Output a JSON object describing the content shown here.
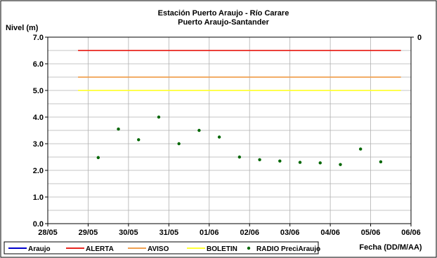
{
  "chart_data": {
    "type": "scatter",
    "title": "Estación Puerto Araujo - Río Carare",
    "subtitle": "Puerto Araujo-Santander",
    "ylabel": "Nivel (m)",
    "xlabel": "Fecha (DD/M/AA)",
    "ylim": [
      0,
      7
    ],
    "yticks": [
      "0.0",
      "1.0",
      "2.0",
      "3.0",
      "4.0",
      "5.0",
      "6.0",
      "7.0"
    ],
    "y2ticks": [
      "0"
    ],
    "xlim": [
      "2009-05-28",
      "2009-06-06"
    ],
    "xticks": [
      "28/05",
      "29/05",
      "30/05",
      "31/05",
      "01/06",
      "02/06",
      "03/06",
      "04/06",
      "05/06",
      "06/06"
    ],
    "grid": true,
    "legend_position": "bottom",
    "thresholds": [
      {
        "name": "ALERTA",
        "value": 6.5,
        "color": "#e8261f",
        "x_start": "2009-05-28 18:00",
        "x_end": "2009-06-05 18:00"
      },
      {
        "name": "AVISO",
        "value": 5.5,
        "color": "#f0a050",
        "x_start": "2009-05-28 18:00",
        "x_end": "2009-06-05 18:00"
      },
      {
        "name": "BOLETIN",
        "value": 5.0,
        "color": "#ffff33",
        "x_start": "2009-05-28 18:00",
        "x_end": "2009-06-05 18:00"
      }
    ],
    "series": [
      {
        "name": "Araujo",
        "color": "#0000cc",
        "style": "line",
        "points": []
      },
      {
        "name": "RADIO",
        "color": "#006600",
        "style": "marker",
        "points": [
          {
            "x": "2009-05-29 06:00",
            "y": 2.48
          },
          {
            "x": "2009-05-29 18:00",
            "y": 3.55
          },
          {
            "x": "2009-05-30 06:00",
            "y": 3.15
          },
          {
            "x": "2009-05-30 18:00",
            "y": 4.0
          },
          {
            "x": "2009-05-31 06:00",
            "y": 3.0
          },
          {
            "x": "2009-05-31 18:00",
            "y": 3.5
          },
          {
            "x": "2009-06-01 06:00",
            "y": 3.25
          },
          {
            "x": "2009-06-01 18:00",
            "y": 2.5
          },
          {
            "x": "2009-06-02 06:00",
            "y": 2.4
          },
          {
            "x": "2009-06-02 18:00",
            "y": 2.35
          },
          {
            "x": "2009-06-03 06:00",
            "y": 2.3
          },
          {
            "x": "2009-06-03 18:00",
            "y": 2.28
          },
          {
            "x": "2009-06-04 06:00",
            "y": 2.22
          },
          {
            "x": "2009-06-04 18:00",
            "y": 2.8
          },
          {
            "x": "2009-06-05 06:00",
            "y": 2.32
          }
        ]
      },
      {
        "name": "PreciAraujo",
        "color": "#000000",
        "style": "none",
        "points": []
      }
    ]
  }
}
